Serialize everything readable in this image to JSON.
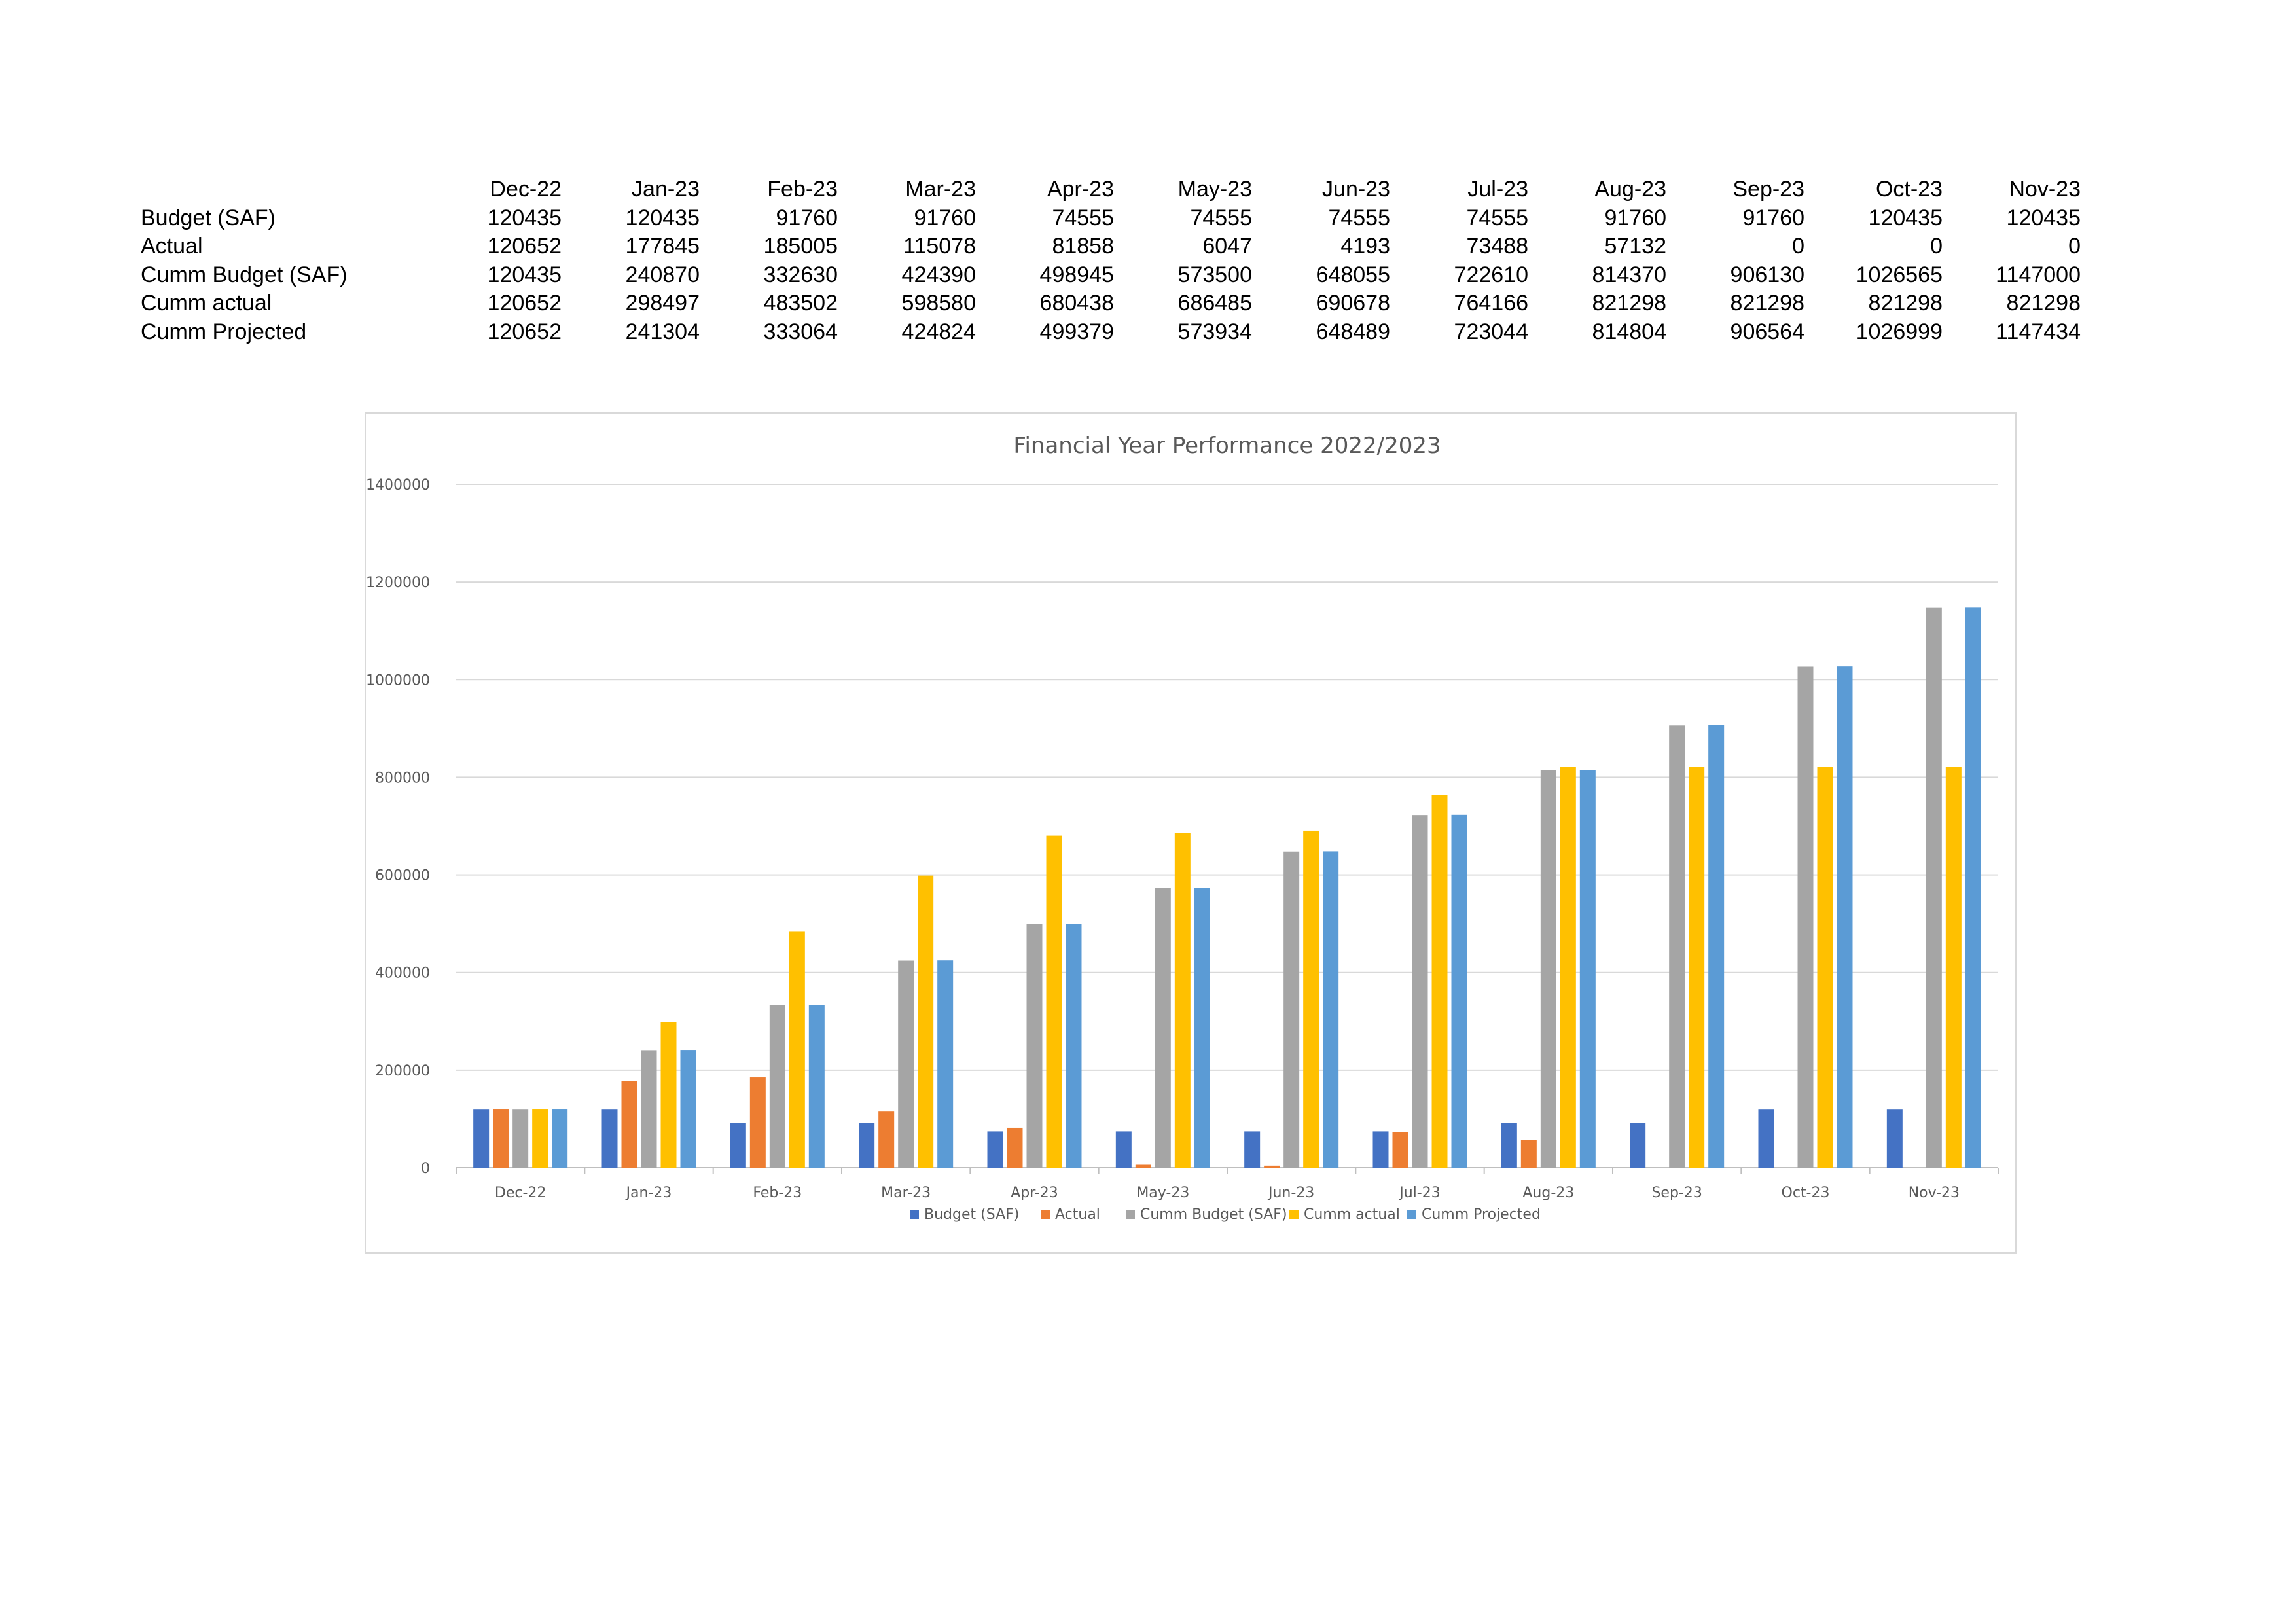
{
  "table": {
    "columns": [
      "Dec-22",
      "Jan-23",
      "Feb-23",
      "Mar-23",
      "Apr-23",
      "May-23",
      "Jun-23",
      "Jul-23",
      "Aug-23",
      "Sep-23",
      "Oct-23",
      "Nov-23"
    ],
    "rows": [
      {
        "label": "Budget (SAF)",
        "values": [
          "120435",
          "120435",
          "91760",
          "91760",
          "74555",
          "74555",
          "74555",
          "74555",
          "91760",
          "91760",
          "120435",
          "120435"
        ]
      },
      {
        "label": "Actual",
        "values": [
          "120652",
          "177845",
          "185005",
          "115078",
          "81858",
          "6047",
          "4193",
          "73488",
          "57132",
          "0",
          "0",
          "0"
        ]
      },
      {
        "label": "Cumm  Budget (SAF)",
        "values": [
          "120435",
          "240870",
          "332630",
          "424390",
          "498945",
          "573500",
          "648055",
          "722610",
          "814370",
          "906130",
          "1026565",
          "1147000"
        ]
      },
      {
        "label": "Cumm actual",
        "values": [
          "120652",
          "298497",
          "483502",
          "598580",
          "680438",
          "686485",
          "690678",
          "764166",
          "821298",
          "821298",
          "821298",
          "821298"
        ]
      },
      {
        "label": "Cumm Projected",
        "values": [
          "120652",
          "241304",
          "333064",
          "424824",
          "499379",
          "573934",
          "648489",
          "723044",
          "814804",
          "906564",
          "1026999",
          "1147434"
        ]
      }
    ]
  },
  "chart_data": {
    "type": "bar",
    "title": "Financial Year Performance 2022/2023",
    "categories": [
      "Dec-22",
      "Jan-23",
      "Feb-23",
      "Mar-23",
      "Apr-23",
      "May-23",
      "Jun-23",
      "Jul-23",
      "Aug-23",
      "Sep-23",
      "Oct-23",
      "Nov-23"
    ],
    "series": [
      {
        "name": "Budget (SAF)",
        "color": "#4472C4",
        "values": [
          120435,
          120435,
          91760,
          91760,
          74555,
          74555,
          74555,
          74555,
          91760,
          91760,
          120435,
          120435
        ]
      },
      {
        "name": "Actual",
        "color": "#ED7D31",
        "values": [
          120652,
          177845,
          185005,
          115078,
          81858,
          6047,
          4193,
          73488,
          57132,
          0,
          0,
          0
        ]
      },
      {
        "name": "Cumm  Budget (SAF)",
        "color": "#A5A5A5",
        "values": [
          120435,
          240870,
          332630,
          424390,
          498945,
          573500,
          648055,
          722610,
          814370,
          906130,
          1026565,
          1147000
        ]
      },
      {
        "name": "Cumm actual",
        "color": "#FFC000",
        "values": [
          120652,
          298497,
          483502,
          598580,
          680438,
          686485,
          690678,
          764166,
          821298,
          821298,
          821298,
          821298
        ]
      },
      {
        "name": "Cumm Projected",
        "color": "#5B9BD5",
        "values": [
          120652,
          241304,
          333064,
          424824,
          499379,
          573934,
          648489,
          723044,
          814804,
          906564,
          1026999,
          1147434
        ]
      }
    ],
    "ylim": [
      0,
      1400000
    ],
    "yticks": [
      "0",
      "200000",
      "400000",
      "600000",
      "800000",
      "1000000",
      "1200000",
      "1400000"
    ],
    "grid": true,
    "legend": "bottom"
  }
}
